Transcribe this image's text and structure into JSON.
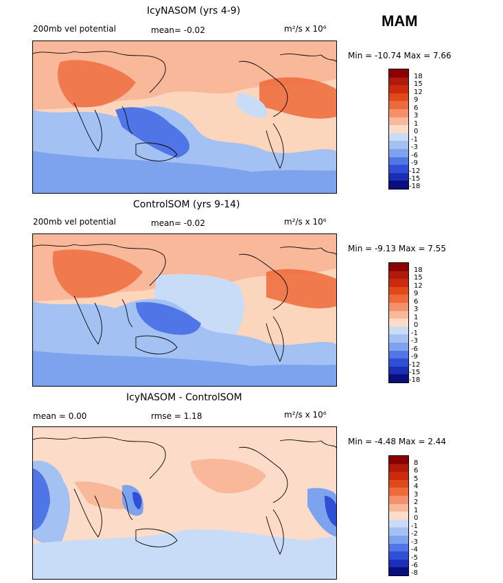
{
  "season": "MAM",
  "panels": [
    {
      "title": "IcyNASOM (yrs 4-9)",
      "left_label": "200mb vel potential",
      "mid_label": "mean=   -0.02",
      "units_text": "m²/s x 10⁶",
      "minmax": "Min = -10.74  Max =    7.66",
      "colorbar_labels": [
        "18",
        "15",
        "12",
        "9",
        "6",
        "3",
        "1",
        "0",
        "-1",
        "-3",
        "-6",
        "-9",
        "-12",
        "-15",
        "-18"
      ]
    },
    {
      "title": "ControlSOM (yrs 9-14)",
      "left_label": "200mb vel potential",
      "mid_label": "mean=   -0.02",
      "units_text": "m²/s x 10⁶",
      "minmax": "Min =  -9.13  Max =   7.55",
      "colorbar_labels": [
        "18",
        "15",
        "12",
        "9",
        "6",
        "3",
        "1",
        "0",
        "-1",
        "-3",
        "-6",
        "-9",
        "-12",
        "-15",
        "-18"
      ]
    },
    {
      "title": "IcyNASOM - ControlSOM",
      "left_label": "mean =    0.00",
      "mid_label": "rmse =    1.18",
      "units_text": "m²/s x 10⁶",
      "minmax": "Min =  -4.48  Max =   2.44",
      "colorbar_labels": [
        "8",
        "6",
        "5",
        "4",
        "3",
        "2",
        "1",
        "0",
        "-1",
        "-2",
        "-3",
        "-4",
        "-5",
        "-6",
        "-8"
      ]
    }
  ],
  "colors": {
    "ramp": [
      "#8b0000",
      "#b01a0a",
      "#cc2a0c",
      "#e04a1a",
      "#ee6a3a",
      "#f5916a",
      "#f8b899",
      "#fcdcc8",
      "#ffffff",
      "#c9dcf7",
      "#a3c1f3",
      "#7ea3ee",
      "#4f75e6",
      "#2f4fd6",
      "#1a2fb5",
      "#0a0f80"
    ]
  }
}
